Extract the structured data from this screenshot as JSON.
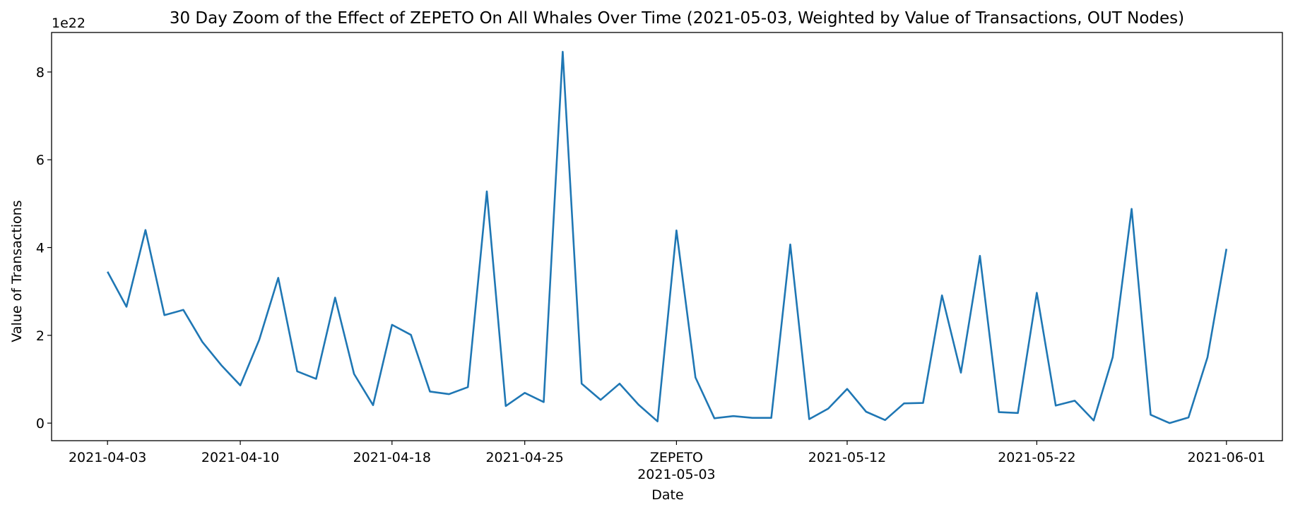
{
  "chart_data": {
    "type": "line",
    "title": "30 Day Zoom of the Effect of ZEPETO On All Whales Over Time (2021-05-03, Weighted by Value of Transactions, OUT Nodes)",
    "xlabel": "Date",
    "ylabel": "Value of Transactions",
    "y_offset_label": "1e22",
    "y_multiplier": 1e+22,
    "ylim": [
      -0.4,
      8.9
    ],
    "y_ticks": [
      0,
      2,
      4,
      6,
      8
    ],
    "x_ticks": [
      {
        "date": "2021-04-03",
        "label": "2021-04-03"
      },
      {
        "date": "2021-04-10",
        "label": "2021-04-10"
      },
      {
        "date": "2021-04-18",
        "label": "2021-04-18"
      },
      {
        "date": "2021-04-25",
        "label": "2021-04-25"
      },
      {
        "date": "2021-05-03",
        "label": "2021-05-03"
      },
      {
        "date": "2021-05-12",
        "label": "2021-05-12"
      },
      {
        "date": "2021-05-22",
        "label": "2021-05-22"
      },
      {
        "date": "2021-06-01",
        "label": "2021-06-01"
      }
    ],
    "event_marker": {
      "date": "2021-05-03",
      "label": "ZEPETO"
    },
    "grid": false,
    "line_color": "#1f77b4",
    "series": [
      {
        "x": [
          "2021-04-03",
          "2021-04-04",
          "2021-04-05",
          "2021-04-06",
          "2021-04-07",
          "2021-04-08",
          "2021-04-09",
          "2021-04-10",
          "2021-04-11",
          "2021-04-12",
          "2021-04-13",
          "2021-04-14",
          "2021-04-15",
          "2021-04-16",
          "2021-04-17",
          "2021-04-18",
          "2021-04-19",
          "2021-04-20",
          "2021-04-21",
          "2021-04-22",
          "2021-04-23",
          "2021-04-24",
          "2021-04-25",
          "2021-04-26",
          "2021-04-27",
          "2021-04-28",
          "2021-04-29",
          "2021-04-30",
          "2021-05-01",
          "2021-05-02",
          "2021-05-03",
          "2021-05-04",
          "2021-05-05",
          "2021-05-06",
          "2021-05-07",
          "2021-05-08",
          "2021-05-09",
          "2021-05-10",
          "2021-05-11",
          "2021-05-12",
          "2021-05-13",
          "2021-05-14",
          "2021-05-15",
          "2021-05-16",
          "2021-05-17",
          "2021-05-18",
          "2021-05-19",
          "2021-05-20",
          "2021-05-21",
          "2021-05-22",
          "2021-05-23",
          "2021-05-24",
          "2021-05-25",
          "2021-05-26",
          "2021-05-27",
          "2021-05-28",
          "2021-05-29",
          "2021-05-30",
          "2021-05-31",
          "2021-06-01"
        ],
        "values": [
          3.45,
          2.65,
          4.4,
          2.46,
          2.58,
          1.85,
          1.32,
          0.86,
          1.9,
          3.31,
          1.18,
          1.01,
          2.86,
          1.12,
          0.41,
          2.24,
          2.01,
          0.72,
          0.66,
          0.82,
          5.28,
          0.39,
          0.69,
          0.48,
          8.46,
          0.9,
          0.53,
          0.9,
          0.42,
          0.04,
          4.39,
          1.04,
          0.11,
          0.16,
          0.12,
          0.12,
          4.07,
          0.09,
          0.33,
          0.78,
          0.26,
          0.07,
          0.45,
          0.46,
          2.91,
          1.15,
          3.81,
          0.25,
          0.23,
          2.97,
          0.4,
          0.51,
          0.06,
          1.5,
          4.88,
          0.19,
          0.0,
          0.13,
          1.5,
          3.97
        ]
      }
    ]
  }
}
